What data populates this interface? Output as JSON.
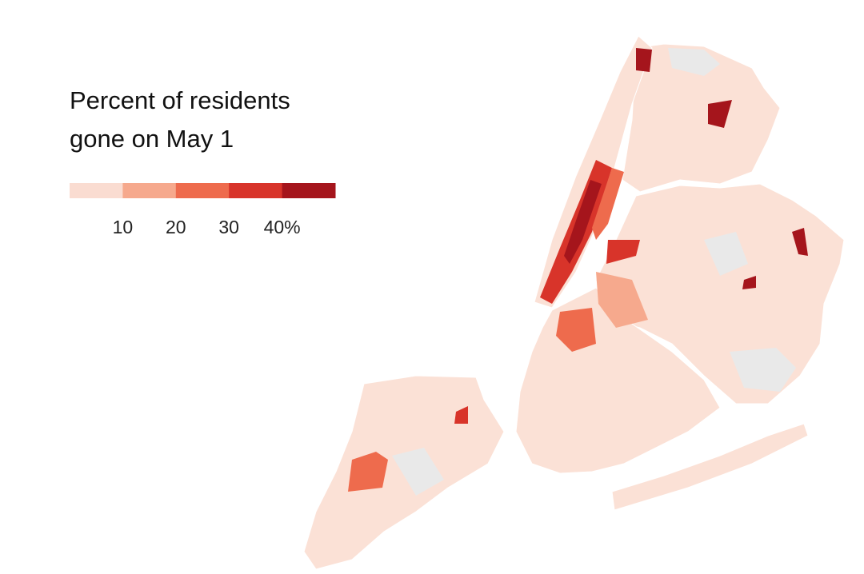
{
  "legend": {
    "title_lines": [
      "Percent of residents",
      "gone on May 1"
    ],
    "colors": [
      "#fadcd1",
      "#f6a98d",
      "#ee6b4d",
      "#d8342a",
      "#a5151c"
    ],
    "lim": [
      0,
      50
    ],
    "ticks": [
      10,
      20,
      30,
      {
        "value": 40,
        "label": "40%"
      }
    ]
  }
}
